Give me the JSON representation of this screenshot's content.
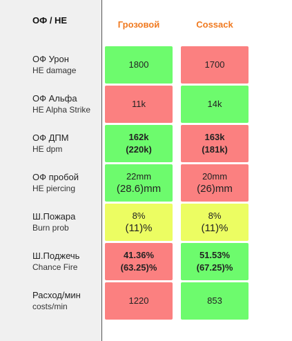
{
  "header": {
    "title": "ОФ / НЕ",
    "columns": [
      "Грозовой",
      "Cossack"
    ]
  },
  "rows": [
    {
      "label_ru": "ОФ Урон",
      "label_en": "HE damage",
      "bold": false,
      "cells": [
        {
          "lines": [
            "1800"
          ],
          "color": "#6dfb6d"
        },
        {
          "lines": [
            "1700"
          ],
          "color": "#fb8080"
        }
      ]
    },
    {
      "label_ru": "ОФ Альфа",
      "label_en": "HE Alpha Strike",
      "bold": false,
      "cells": [
        {
          "lines": [
            "11k"
          ],
          "color": "#fb8080"
        },
        {
          "lines": [
            "14k"
          ],
          "color": "#6dfb6d"
        }
      ]
    },
    {
      "label_ru": "ОФ ДПМ",
      "label_en": "HE dpm",
      "bold": true,
      "cells": [
        {
          "lines": [
            "162k",
            "(220k)"
          ],
          "color": "#6dfb6d"
        },
        {
          "lines": [
            "163k",
            "(181k)"
          ],
          "color": "#fb8080"
        }
      ]
    },
    {
      "label_ru": "ОФ пробой",
      "label_en": "HE piercing",
      "bold": false,
      "cells": [
        {
          "lines": [
            "22mm",
            "(28.6)mm"
          ],
          "color": "#6dfb6d"
        },
        {
          "lines": [
            "20mm",
            "(26)mm"
          ],
          "color": "#fb8080"
        }
      ]
    },
    {
      "label_ru": "Ш.Пожара",
      "label_en": "Burn prob",
      "bold": false,
      "cells": [
        {
          "lines": [
            "8%",
            "(11)%"
          ],
          "color": "#ecfd62"
        },
        {
          "lines": [
            "8%",
            "(11)%"
          ],
          "color": "#ecfd62"
        }
      ]
    },
    {
      "label_ru": "Ш.Поджечь",
      "label_en": "Chance Fire",
      "bold": true,
      "cells": [
        {
          "lines": [
            "41.36%",
            "(63.25)%"
          ],
          "color": "#fb8080"
        },
        {
          "lines": [
            "51.53%",
            "(67.25)%"
          ],
          "color": "#6dfb6d"
        }
      ]
    },
    {
      "label_ru": "Расход/мин",
      "label_en": "costs/min",
      "bold": false,
      "cells": [
        {
          "lines": [
            "1220"
          ],
          "color": "#fb8080"
        },
        {
          "lines": [
            "853"
          ],
          "color": "#6dfb6d"
        }
      ]
    }
  ]
}
